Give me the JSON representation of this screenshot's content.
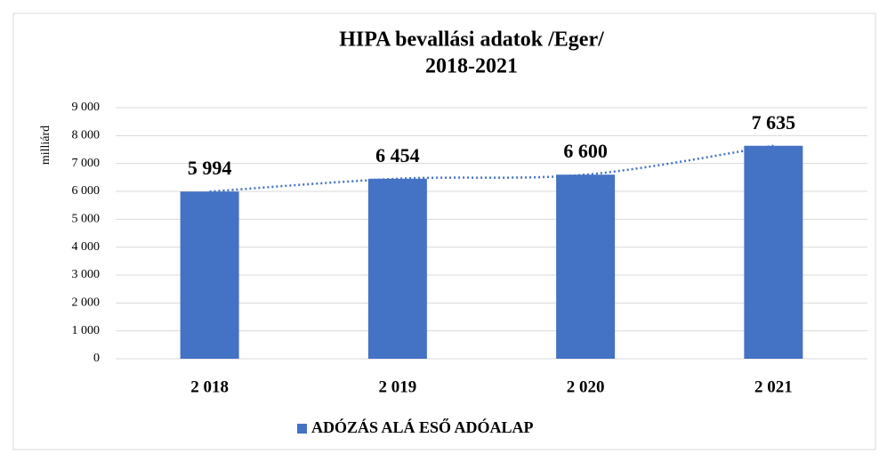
{
  "chart_data": {
    "type": "bar",
    "title": [
      "HIPA bevallási adatok /Eger/",
      "2018-2021"
    ],
    "y_label": "milliárd",
    "categories": [
      "2 018",
      "2 019",
      "2 020",
      "2 021"
    ],
    "series": [
      {
        "name": "ADÓZÁS ALÁ ESŐ ADÓALAP",
        "color": "#4472c4",
        "values": [
          5994,
          6454,
          6600,
          7635
        ],
        "value_labels": [
          "5 994",
          "6 454",
          "6 600",
          "7 635"
        ]
      }
    ],
    "trendline": true,
    "ylim": [
      0,
      9000
    ],
    "yticks": [
      0,
      {
        "value": 1000,
        "label": "1 000"
      },
      {
        "value": 2000,
        "label": "2 000"
      },
      {
        "value": 3000,
        "label": "3 000"
      },
      {
        "value": 4000,
        "label": "4 000"
      },
      {
        "value": 5000,
        "label": "5 000"
      },
      {
        "value": 6000,
        "label": "6 000"
      },
      {
        "value": 7000,
        "label": "7 000"
      },
      {
        "value": 8000,
        "label": "8 000"
      },
      {
        "value": 9000,
        "label": "9 000"
      }
    ],
    "grid": true,
    "legend": "bottom"
  }
}
